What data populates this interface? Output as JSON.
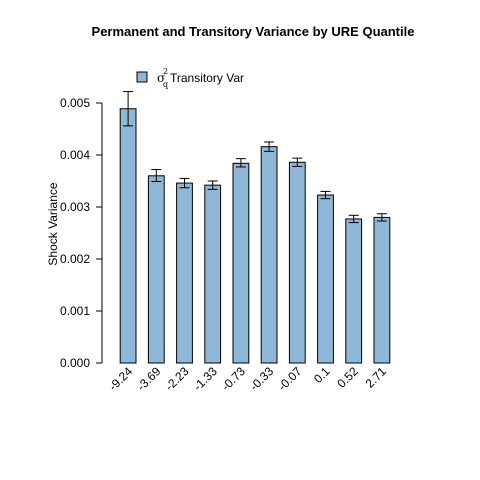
{
  "chart_data": {
    "type": "bar",
    "title": "Permanent and Transitory Variance by  URE Quantile",
    "ylabel": "Shock Variance",
    "xlabel": "",
    "categories": [
      "-9.24",
      "-3.69",
      "-2.23",
      "-1.33",
      "-0.73",
      "-0.33",
      "-0.07",
      "0.1",
      "0.52",
      "2.71"
    ],
    "series": [
      {
        "name": "σ²q Transitory Var",
        "values": [
          0.00489,
          0.0036,
          0.00346,
          0.00342,
          0.00384,
          0.00416,
          0.00386,
          0.00323,
          0.00277,
          0.0028
        ],
        "error_low": [
          0.00456,
          0.00349,
          0.00337,
          0.00334,
          0.00377,
          0.00407,
          0.00378,
          0.00316,
          0.0027,
          0.00273
        ],
        "error_high": [
          0.00522,
          0.00372,
          0.00355,
          0.0035,
          0.00393,
          0.00425,
          0.00394,
          0.0033,
          0.00284,
          0.00287
        ]
      }
    ],
    "ylim": [
      0,
      0.005
    ],
    "yticks": [
      "0.000",
      "0.001",
      "0.002",
      "0.003",
      "0.004",
      "0.005"
    ],
    "grid": false,
    "legend": {
      "position": "top-left",
      "symbol": "σ",
      "sup": "2",
      "sub": "q",
      "text": "Transitory Var"
    },
    "colors": {
      "bar": "#8fb8d8",
      "bar_border": "#000000",
      "error": "#000000"
    }
  }
}
